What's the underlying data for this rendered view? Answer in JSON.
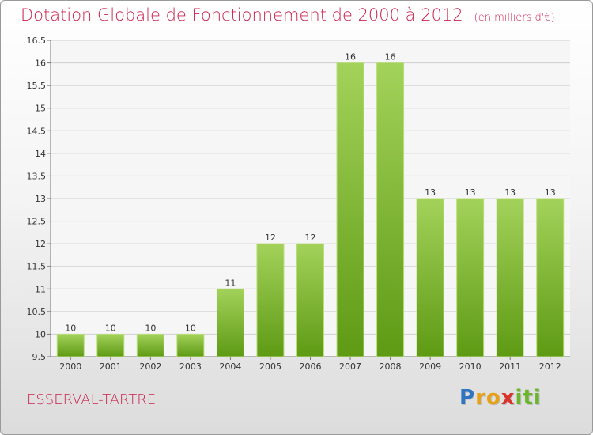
{
  "title": "Dotation Globale de Fonctionnement de 2000 à 2012",
  "unit": "(en milliers d'€)",
  "commune": "ESSERVAL-TARTRE",
  "logo": {
    "letters": [
      {
        "ch": "P",
        "color": "#2f74c0"
      },
      {
        "ch": "r",
        "color": "#e8a115"
      },
      {
        "ch": "o",
        "color": "#e8a115"
      },
      {
        "ch": "x",
        "color": "#d9342b"
      },
      {
        "ch": "i",
        "color": "#6ab52c"
      },
      {
        "ch": "t",
        "color": "#6ab52c"
      },
      {
        "ch": "i",
        "color": "#6ab52c"
      }
    ]
  },
  "chart_data": {
    "type": "bar",
    "categories": [
      "2000",
      "2001",
      "2002",
      "2003",
      "2004",
      "2005",
      "2006",
      "2007",
      "2008",
      "2009",
      "2010",
      "2011",
      "2012"
    ],
    "values": [
      10,
      10,
      10,
      10,
      11,
      12,
      12,
      16,
      16,
      13,
      13,
      13,
      13
    ],
    "ylim": [
      9.5,
      16.5
    ],
    "yticks": [
      "9.5",
      "10",
      "10.5",
      "11",
      "11.5",
      "12",
      "12.5",
      "13",
      "13.5",
      "14",
      "14.5",
      "15",
      "15.5",
      "16",
      "16.5"
    ],
    "grid": true,
    "colors": {
      "bar_top": "#a3d25a",
      "bar_bottom": "#5e9a14",
      "grid": "#cfcfcf"
    }
  }
}
